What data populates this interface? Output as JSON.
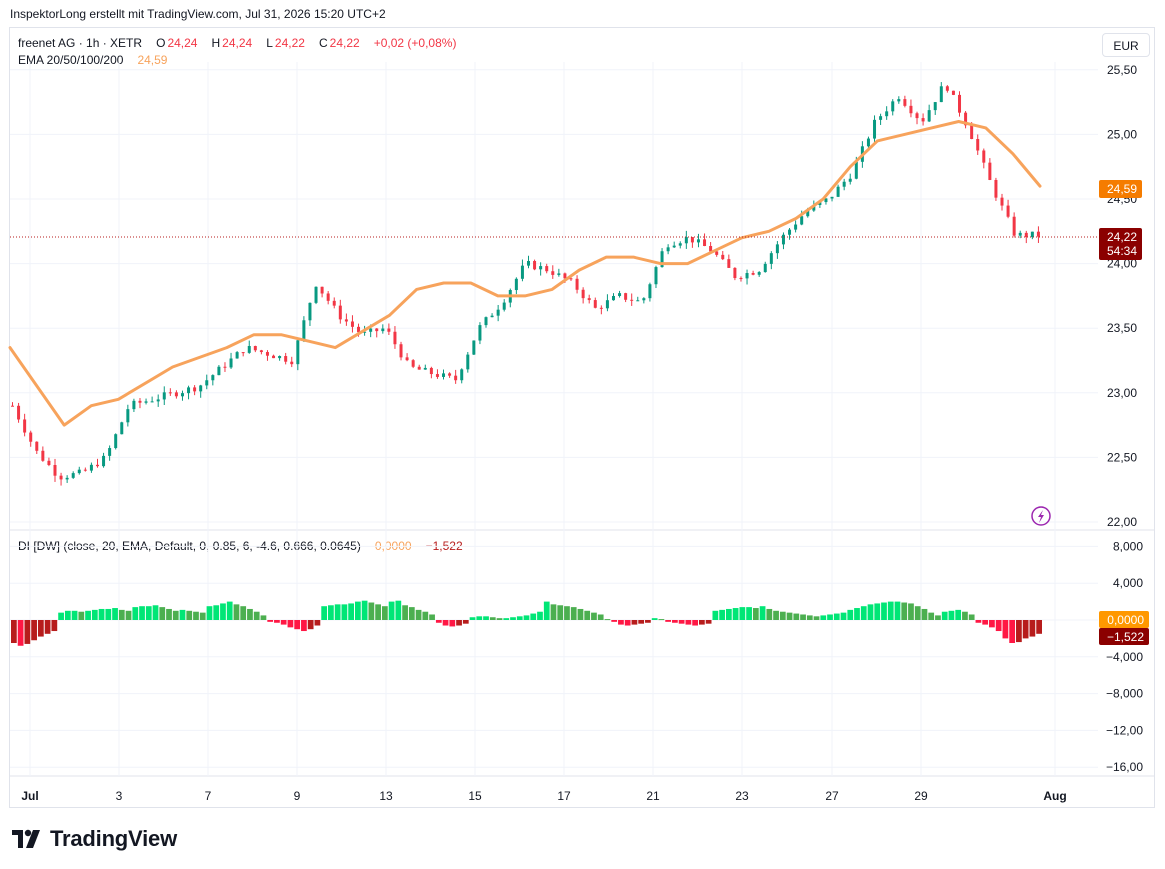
{
  "header": {
    "credit": "InspektorLong erstellt mit TradingView.com, Jul 31, 2026 15:20 UTC+2"
  },
  "legend": {
    "symbol": "freenet AG · 1h · XETR",
    "o_label": "O",
    "o_value": "24,24",
    "h_label": "H",
    "h_value": "24,24",
    "l_label": "L",
    "l_value": "24,22",
    "c_label": "C",
    "c_value": "24,22",
    "change": "+0,02 (+0,08%)",
    "ema_label": "EMA 20/50/100/200",
    "ema_value": "24,59",
    "di_label": "DI [DW] (close, 20, EMA, Default, 0, 0.85, 6, -4.6, 0.666, 0.0645)",
    "di_value1": "0,0000",
    "di_value2": "−1,522"
  },
  "currency": "EUR",
  "price_badges": {
    "ema": "24,59",
    "last": "24,22",
    "countdown": "54:34"
  },
  "di_badges": {
    "zero": "0,0000",
    "value": "−1,522"
  },
  "brand": "TradingView",
  "colors": {
    "up": "#089981",
    "down": "#f23645",
    "ema": "#f7a35c",
    "osc_green": "#4caf50",
    "osc_lime": "#00e676",
    "osc_red": "#ff1744",
    "osc_darkred": "#b71c1c"
  },
  "chart_data": {
    "type": "candlestick",
    "price_axis": {
      "ticks": [
        22.0,
        22.5,
        23.0,
        23.5,
        24.0,
        24.5,
        25.0,
        25.5
      ],
      "tick_labels": [
        "22,00",
        "22,50",
        "23,00",
        "23,50",
        "24,00",
        "24,50",
        "25,00",
        "25,50"
      ],
      "ylim": [
        22.0,
        25.55
      ]
    },
    "time_axis": {
      "labels": [
        "Jul",
        "3",
        "7",
        "9",
        "13",
        "15",
        "17",
        "21",
        "23",
        "27",
        "29",
        "Aug"
      ]
    },
    "close_path": [
      [
        1,
        22.9
      ],
      [
        2,
        22.55
      ],
      [
        3,
        22.35
      ],
      [
        4,
        22.38
      ],
      [
        5,
        22.5
      ],
      [
        6,
        22.9
      ],
      [
        7,
        22.95
      ],
      [
        8,
        23.0
      ],
      [
        9,
        23.05
      ],
      [
        10,
        23.2
      ],
      [
        11,
        23.35
      ],
      [
        12,
        23.3
      ],
      [
        13,
        23.25
      ],
      [
        14,
        23.85
      ],
      [
        15,
        23.6
      ],
      [
        16,
        23.45
      ],
      [
        17,
        23.5
      ],
      [
        18,
        23.2
      ],
      [
        19,
        23.15
      ],
      [
        20,
        23.1
      ],
      [
        21,
        23.5
      ],
      [
        22,
        23.7
      ],
      [
        23,
        24.0
      ],
      [
        24,
        23.95
      ],
      [
        25,
        23.85
      ],
      [
        26,
        23.65
      ],
      [
        27,
        23.75
      ],
      [
        28,
        23.7
      ],
      [
        29,
        24.15
      ],
      [
        30,
        24.2
      ],
      [
        31,
        24.1
      ],
      [
        32,
        23.9
      ],
      [
        33,
        23.95
      ],
      [
        34,
        24.2
      ],
      [
        35,
        24.4
      ],
      [
        36,
        24.5
      ],
      [
        37,
        24.7
      ],
      [
        38,
        25.1
      ],
      [
        39,
        25.3
      ],
      [
        40,
        25.1
      ],
      [
        41,
        25.4
      ],
      [
        42,
        25.05
      ],
      [
        43,
        24.6
      ],
      [
        44,
        24.22
      ],
      [
        45,
        24.22
      ]
    ],
    "ema_path": [
      [
        0,
        23.35
      ],
      [
        2,
        22.75
      ],
      [
        3,
        22.9
      ],
      [
        4,
        22.95
      ],
      [
        6,
        23.2
      ],
      [
        8,
        23.35
      ],
      [
        9,
        23.45
      ],
      [
        10,
        23.45
      ],
      [
        11,
        23.4
      ],
      [
        12,
        23.35
      ],
      [
        14,
        23.6
      ],
      [
        15,
        23.8
      ],
      [
        16,
        23.85
      ],
      [
        17,
        23.85
      ],
      [
        18,
        23.75
      ],
      [
        19,
        23.75
      ],
      [
        20,
        23.8
      ],
      [
        21,
        23.95
      ],
      [
        22,
        24.05
      ],
      [
        23,
        24.05
      ],
      [
        24,
        24.0
      ],
      [
        25,
        24.0
      ],
      [
        26,
        24.1
      ],
      [
        27,
        24.2
      ],
      [
        28,
        24.25
      ],
      [
        29,
        24.35
      ],
      [
        30,
        24.5
      ],
      [
        31,
        24.75
      ],
      [
        32,
        24.95
      ],
      [
        33,
        25.0
      ],
      [
        34,
        25.05
      ],
      [
        35,
        25.1
      ],
      [
        36,
        25.05
      ],
      [
        37,
        24.85
      ],
      [
        38,
        24.6
      ]
    ],
    "oscillator": {
      "axis_ticks": [
        8,
        4,
        0,
        -4,
        -8,
        -12,
        -16
      ],
      "axis_labels": [
        "8,000",
        "4,000",
        "",
        "−4,000",
        "−8,000",
        "−12,00",
        "−16,00"
      ],
      "ylim": [
        -17,
        9
      ],
      "values": [
        -2.5,
        -2.8,
        -2.6,
        -2.2,
        -1.8,
        -1.5,
        -1.2,
        0.8,
        1.0,
        1.0,
        0.9,
        1.0,
        1.1,
        1.2,
        1.2,
        1.3,
        1.1,
        1.0,
        1.4,
        1.5,
        1.5,
        1.6,
        1.4,
        1.2,
        1.0,
        1.1,
        1.0,
        0.9,
        0.8,
        1.5,
        1.6,
        1.8,
        2.0,
        1.7,
        1.5,
        1.2,
        0.9,
        0.5,
        -0.2,
        -0.3,
        -0.5,
        -0.8,
        -1.0,
        -1.2,
        -1.0,
        -0.6,
        1.5,
        1.6,
        1.7,
        1.7,
        1.8,
        2.0,
        2.1,
        1.9,
        1.7,
        1.5,
        2.0,
        2.1,
        1.6,
        1.4,
        1.1,
        0.9,
        0.6,
        -0.3,
        -0.6,
        -0.7,
        -0.6,
        -0.4,
        0.3,
        0.4,
        0.4,
        0.3,
        0.2,
        0.2,
        0.3,
        0.4,
        0.5,
        0.7,
        0.9,
        2.0,
        1.7,
        1.6,
        1.5,
        1.4,
        1.2,
        1.0,
        0.8,
        0.6,
        0.1,
        -0.2,
        -0.5,
        -0.6,
        -0.5,
        -0.4,
        -0.3,
        0.2,
        0.1,
        -0.2,
        -0.3,
        -0.4,
        -0.5,
        -0.6,
        -0.5,
        -0.4,
        1.0,
        1.1,
        1.2,
        1.3,
        1.4,
        1.4,
        1.3,
        1.5,
        1.2,
        1.0,
        0.9,
        0.8,
        0.7,
        0.6,
        0.5,
        0.4,
        0.5,
        0.6,
        0.7,
        0.8,
        1.1,
        1.3,
        1.5,
        1.7,
        1.8,
        1.9,
        2.0,
        2.0,
        1.9,
        1.8,
        1.5,
        1.2,
        0.8,
        0.5,
        0.9,
        1.0,
        1.1,
        0.9,
        0.6,
        -0.3,
        -0.5,
        -0.8,
        -1.2,
        -2.0,
        -2.5,
        -2.4,
        -2.0,
        -1.8,
        -1.5
      ]
    }
  }
}
